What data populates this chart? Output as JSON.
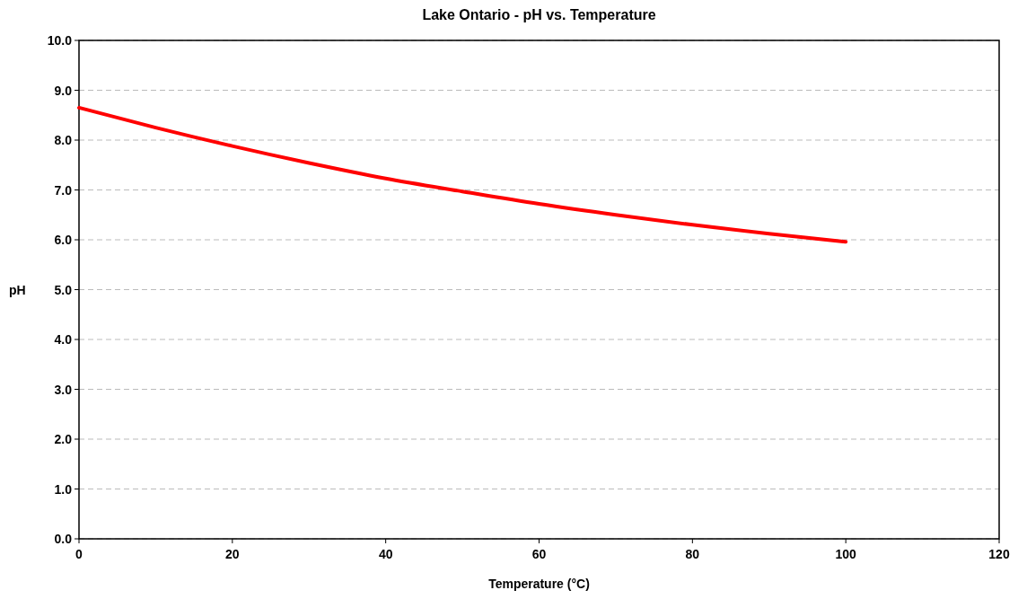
{
  "chart_data": {
    "type": "line",
    "title": "Lake Ontario - pH vs. Temperature",
    "xlabel": "Temperature (°C)",
    "ylabel": "pH",
    "x": [
      0,
      10,
      20,
      30,
      40,
      50,
      60,
      70,
      80,
      90,
      100
    ],
    "series": [
      {
        "color": "#ff0000",
        "values": [
          8.65,
          8.25,
          7.88,
          7.54,
          7.23,
          6.97,
          6.72,
          6.5,
          6.3,
          6.12,
          5.96
        ]
      }
    ],
    "xlim": [
      0,
      120
    ],
    "xticks": [
      0,
      20,
      40,
      60,
      80,
      100,
      120
    ],
    "ylim": [
      0,
      10
    ],
    "yticks": [
      {
        "value": 0,
        "label": "0.0"
      },
      {
        "value": 1,
        "label": "1.0"
      },
      {
        "value": 2,
        "label": "2.0"
      },
      {
        "value": 3,
        "label": "3.0"
      },
      {
        "value": 4,
        "label": "4.0"
      },
      {
        "value": 5,
        "label": "5.0"
      },
      {
        "value": 6,
        "label": "6.0"
      },
      {
        "value": 7,
        "label": "7.0"
      },
      {
        "value": 8,
        "label": "8.0"
      },
      {
        "value": 9,
        "label": "9.0"
      },
      {
        "value": 10,
        "label": "10.0"
      }
    ],
    "grid": "y",
    "marker": "none",
    "line_style": "solid"
  }
}
